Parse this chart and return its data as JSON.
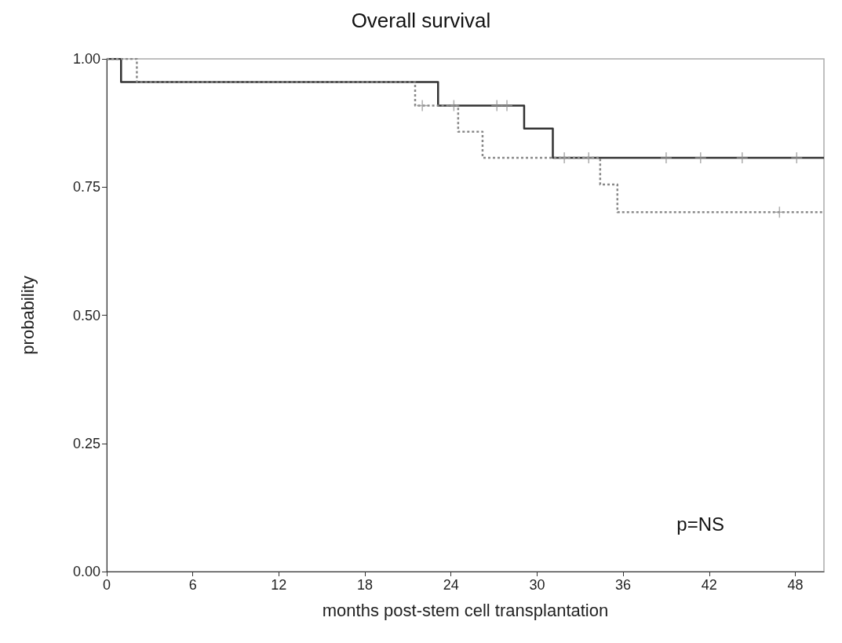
{
  "chart_data": {
    "type": "step",
    "title": "Overall survival",
    "xlabel": "months post-stem cell transplantation",
    "ylabel": "probability",
    "annotations": [
      "p=NS"
    ],
    "xlim": [
      0,
      50
    ],
    "xticks": [
      0,
      6,
      12,
      18,
      24,
      30,
      36,
      42,
      48
    ],
    "ylim": [
      0,
      1
    ],
    "yticks": [
      {
        "value": 0,
        "label": "0.00"
      },
      {
        "value": 0.25,
        "label": "0.25"
      },
      {
        "value": 0.5,
        "label": "0.50"
      },
      {
        "value": 0.75,
        "label": "0.75"
      },
      {
        "value": 1,
        "label": "1.00"
      }
    ],
    "series": [
      {
        "color": "#333333",
        "line_style": "solid",
        "marker": "none",
        "x": [
          0,
          1,
          23.1,
          29.1,
          31.1,
          50
        ],
        "values": [
          1,
          0.955,
          0.909,
          0.864,
          0.807,
          0.807
        ]
      },
      {
        "color": "#888888",
        "line_style": "dotted",
        "marker": "none",
        "x": [
          0,
          2.1,
          21.5,
          24.5,
          26.2,
          34.4,
          35.6,
          50
        ],
        "values": [
          1,
          0.955,
          0.909,
          0.858,
          0.807,
          0.755,
          0.701,
          0.701
        ]
      },
      {
        "type": "scatter",
        "color": "#999999",
        "marker": "cross",
        "x": [
          24.2,
          27.2,
          27.9,
          31.9,
          33.6,
          39.0,
          41.4,
          44.3,
          48.1
        ],
        "values": [
          0.909,
          0.909,
          0.909,
          0.807,
          0.807,
          0.807,
          0.807,
          0.807,
          0.807
        ]
      },
      {
        "type": "scatter",
        "color": "#999999",
        "marker": "cross",
        "x": [
          22.0,
          46.9
        ],
        "values": [
          0.909,
          0.701
        ]
      }
    ]
  }
}
